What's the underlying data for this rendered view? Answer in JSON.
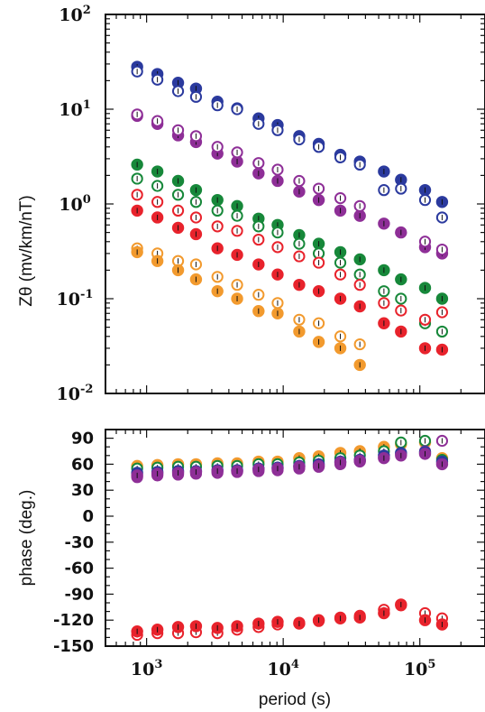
{
  "chart_data": [
    {
      "type": "scatter",
      "title": "",
      "xlabel": "",
      "ylabel": "Zθ (mv/km/nT)",
      "xscale": "log",
      "yscale": "log",
      "xlim": [
        500,
        300000
      ],
      "ylim": [
        0.01,
        100
      ],
      "grid": false,
      "x_ticks": [
        {
          "value": 1000,
          "base": "10",
          "exp": "3"
        },
        {
          "value": 10000,
          "base": "10",
          "exp": "4"
        },
        {
          "value": 100000,
          "base": "10",
          "exp": "5"
        }
      ],
      "y_ticks": [
        {
          "value": 100,
          "base": "10",
          "exp": "2"
        },
        {
          "value": 10,
          "base": "10",
          "exp": "1"
        },
        {
          "value": 1,
          "base": "10",
          "exp": "0"
        },
        {
          "value": 0.1,
          "base": "10",
          "exp": "-1"
        },
        {
          "value": 0.01,
          "base": "10",
          "exp": "-2"
        }
      ],
      "x": [
        853,
        1200,
        1700,
        2300,
        3300,
        4600,
        6600,
        9100,
        13100,
        18200,
        26200,
        36400,
        54600,
        72800,
        109200,
        145600
      ],
      "series": [
        {
          "color": "#2b3a9e",
          "marker": "filled",
          "values": [
            28,
            23.5,
            19,
            16.5,
            12,
            10.2,
            8,
            6.8,
            5.2,
            4.3,
            3.3,
            2.8,
            2.2,
            1.8,
            1.4,
            1.05
          ]
        },
        {
          "color": "#2b3a9e",
          "marker": "open",
          "values": [
            25,
            20.5,
            15.5,
            13.5,
            11,
            10,
            7,
            6,
            4.8,
            4,
            3.1,
            2.6,
            1.4,
            1.45,
            1.1,
            0.72
          ]
        },
        {
          "color": "#8e2f97",
          "marker": "filled",
          "values": [
            8.5,
            7,
            5.3,
            4.5,
            3.4,
            2.8,
            2.1,
            1.75,
            1.35,
            1.1,
            0.85,
            0.75,
            0.62,
            0.5,
            0.35,
            0.3
          ]
        },
        {
          "color": "#8e2f97",
          "marker": "open",
          "values": [
            8.8,
            7.5,
            6,
            5.2,
            4,
            3.5,
            2.7,
            2.3,
            1.75,
            1.45,
            1.15,
            0.95,
            null,
            null,
            0.4,
            0.33
          ]
        },
        {
          "color": "#17883a",
          "marker": "filled",
          "values": [
            2.6,
            2.2,
            1.75,
            1.4,
            1.1,
            0.95,
            0.7,
            0.6,
            0.47,
            0.38,
            0.31,
            0.26,
            0.2,
            0.16,
            0.13,
            0.1
          ]
        },
        {
          "color": "#17883a",
          "marker": "open",
          "values": [
            1.85,
            1.55,
            1.25,
            1.05,
            0.85,
            0.75,
            0.58,
            0.5,
            0.38,
            0.3,
            0.24,
            0.18,
            0.12,
            0.1,
            0.055,
            0.045
          ]
        },
        {
          "color": "#e8232c",
          "marker": "open",
          "values": [
            1.25,
            1.05,
            0.85,
            0.72,
            0.58,
            0.52,
            0.42,
            0.35,
            0.28,
            0.24,
            0.18,
            0.14,
            0.09,
            0.075,
            0.06,
            0.072
          ]
        },
        {
          "color": "#e8232c",
          "marker": "filled",
          "values": [
            0.85,
            0.72,
            0.56,
            0.48,
            0.34,
            0.29,
            0.23,
            0.18,
            0.14,
            0.12,
            0.1,
            0.083,
            0.055,
            0.045,
            0.03,
            0.029
          ]
        },
        {
          "color": "#f29a2e",
          "marker": "open",
          "values": [
            0.34,
            0.3,
            0.25,
            0.23,
            0.17,
            0.14,
            0.11,
            0.09,
            0.06,
            0.055,
            0.04,
            0.033,
            null,
            null,
            null,
            null
          ]
        },
        {
          "color": "#f29a2e",
          "marker": "filled",
          "values": [
            0.31,
            0.25,
            0.2,
            0.16,
            0.12,
            0.1,
            0.074,
            0.07,
            0.045,
            0.035,
            0.03,
            0.02,
            null,
            null,
            null,
            null
          ]
        }
      ]
    },
    {
      "type": "scatter",
      "title": "",
      "xlabel": "period (s)",
      "ylabel": "phase (deg.)",
      "xscale": "log",
      "yscale": "linear",
      "xlim": [
        500,
        300000
      ],
      "ylim": [
        -150,
        100
      ],
      "grid": false,
      "y_ticks": [
        "90",
        "60",
        "30",
        "0",
        "-30",
        "-60",
        "-90",
        "-120",
        "-150"
      ],
      "x": [
        853,
        1200,
        1700,
        2300,
        3300,
        4600,
        6600,
        9100,
        13100,
        18200,
        26200,
        36400,
        54600,
        72800,
        109200,
        145600
      ],
      "series": [
        {
          "color": "#f29a2e",
          "marker": "filled",
          "values": [
            58,
            59,
            60,
            60,
            61,
            61,
            63,
            63,
            67,
            69,
            73,
            75,
            80,
            83,
            85,
            67
          ]
        },
        {
          "color": "#17883a",
          "marker": "open",
          "values": [
            55,
            56,
            57,
            57,
            58,
            58,
            60,
            60,
            62,
            64,
            67,
            70,
            75,
            85,
            87,
            65
          ]
        },
        {
          "color": "#8e2f97",
          "marker": "open",
          "values": [
            45,
            47,
            48,
            49,
            50,
            51,
            52,
            53,
            55,
            57,
            60,
            63,
            68,
            72,
            75,
            87
          ]
        },
        {
          "color": "#2b3a9e",
          "marker": "filled",
          "values": [
            50,
            51,
            52,
            52,
            53,
            53,
            55,
            56,
            58,
            60,
            63,
            65,
            70,
            73,
            74,
            63
          ]
        },
        {
          "color": "#8e2f97",
          "marker": "filled",
          "values": [
            47,
            49,
            50,
            51,
            52,
            52,
            54,
            55,
            57,
            58,
            62,
            64,
            67,
            70,
            72,
            60
          ]
        },
        {
          "color": "#e8232c",
          "marker": "open",
          "values": [
            -137,
            -135,
            -135,
            -134,
            -135,
            -131,
            -128,
            -125,
            -123,
            -121,
            -117,
            -115,
            -108,
            -103,
            -112,
            -118
          ]
        },
        {
          "color": "#e8232c",
          "marker": "filled",
          "values": [
            -133,
            -131,
            -128,
            -127,
            -129,
            -127,
            -124,
            -122,
            -124,
            -120,
            -118,
            -117,
            -112,
            -102,
            -120,
            -125
          ]
        }
      ]
    }
  ]
}
